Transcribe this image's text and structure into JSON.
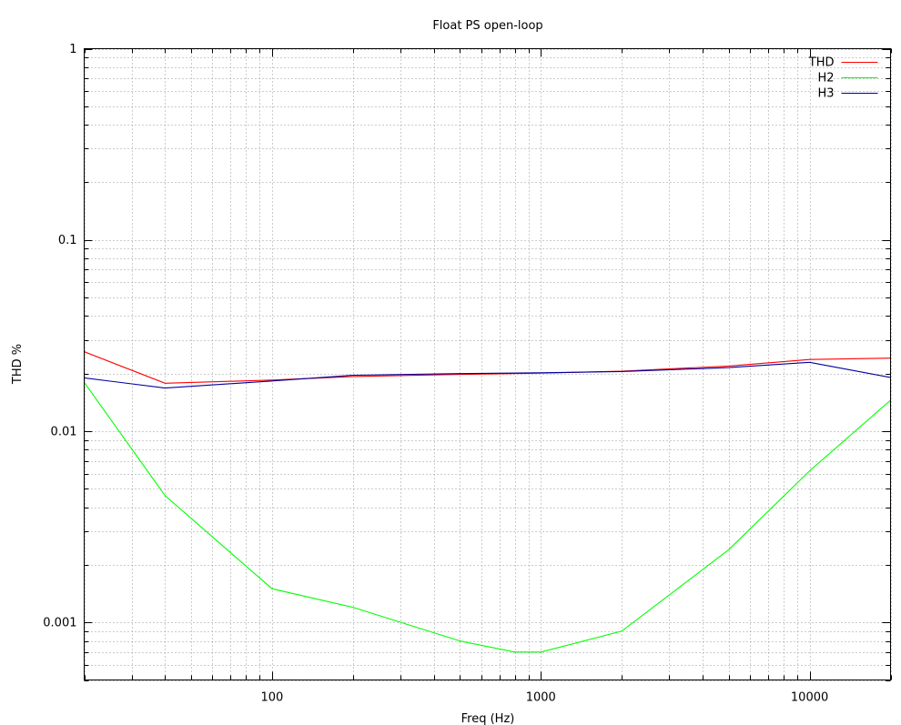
{
  "chart_data": {
    "type": "line",
    "title": "Float PS open-loop",
    "xlabel": "Freq (Hz)",
    "ylabel": "THD %",
    "xscale": "log",
    "yscale": "log",
    "xlim": [
      20,
      20000
    ],
    "ylim": [
      0.0005,
      1
    ],
    "grid": true,
    "legend_position": "top-right",
    "x_ticks": [
      {
        "value": 100,
        "label": "100"
      },
      {
        "value": 1000,
        "label": "1000"
      },
      {
        "value": 10000,
        "label": "10000"
      }
    ],
    "y_ticks": [
      {
        "value": 1,
        "label": "1"
      },
      {
        "value": 0.1,
        "label": "0.1"
      },
      {
        "value": 0.01,
        "label": "0.01"
      },
      {
        "value": 0.001,
        "label": "0.001"
      }
    ],
    "series": [
      {
        "name": "THD",
        "color": "#ff0000",
        "x": [
          20,
          40,
          100,
          200,
          500,
          1000,
          2000,
          5000,
          10000,
          20000
        ],
        "values": [
          0.026,
          0.0178,
          0.0185,
          0.0193,
          0.0198,
          0.0201,
          0.0206,
          0.0219,
          0.0237,
          0.0241
        ]
      },
      {
        "name": "H2",
        "color": "#00ff00",
        "x": [
          20,
          40,
          100,
          200,
          500,
          800,
          1000,
          2000,
          5000,
          10000,
          20000
        ],
        "values": [
          0.018,
          0.0046,
          0.0015,
          0.0012,
          0.0008,
          0.0007,
          0.0007,
          0.0009,
          0.0024,
          0.0062,
          0.0145
        ]
      },
      {
        "name": "H3",
        "color": "#0000a0",
        "x": [
          20,
          40,
          100,
          200,
          500,
          1000,
          2000,
          5000,
          10000,
          20000
        ],
        "values": [
          0.019,
          0.0168,
          0.0183,
          0.0196,
          0.02,
          0.0202,
          0.0205,
          0.0215,
          0.0229,
          0.0191
        ]
      }
    ]
  }
}
